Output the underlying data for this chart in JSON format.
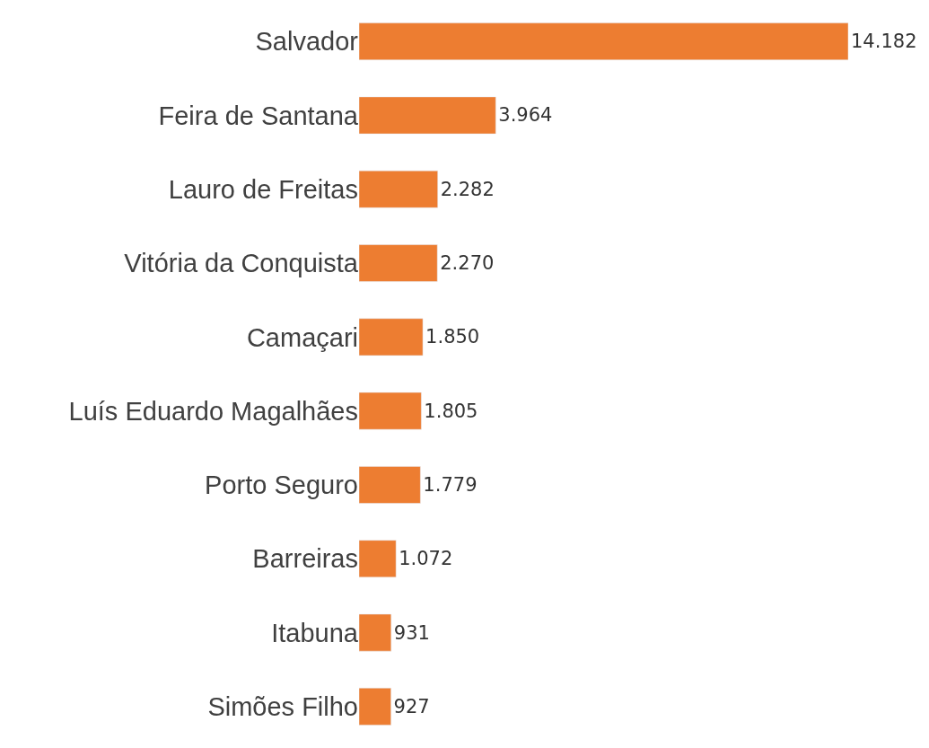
{
  "chart_data": {
    "type": "bar",
    "orientation": "horizontal",
    "categories": [
      "Salvador",
      "Feira de Santana",
      "Lauro de Freitas",
      "Vitória da Conquista",
      "Camaçari",
      "Luís Eduardo Magalhães",
      "Porto Seguro",
      "Barreiras",
      "Itabuna",
      "Simões Filho"
    ],
    "values": [
      14182,
      3964,
      2282,
      2270,
      1850,
      1805,
      1779,
      1072,
      931,
      927
    ],
    "value_labels": [
      "14.182",
      "3.964",
      "2.282",
      "2.270",
      "1.850",
      "1.805",
      "1.779",
      "1.072",
      "931",
      "927"
    ],
    "color": "#ed7d31",
    "legend": false
  }
}
